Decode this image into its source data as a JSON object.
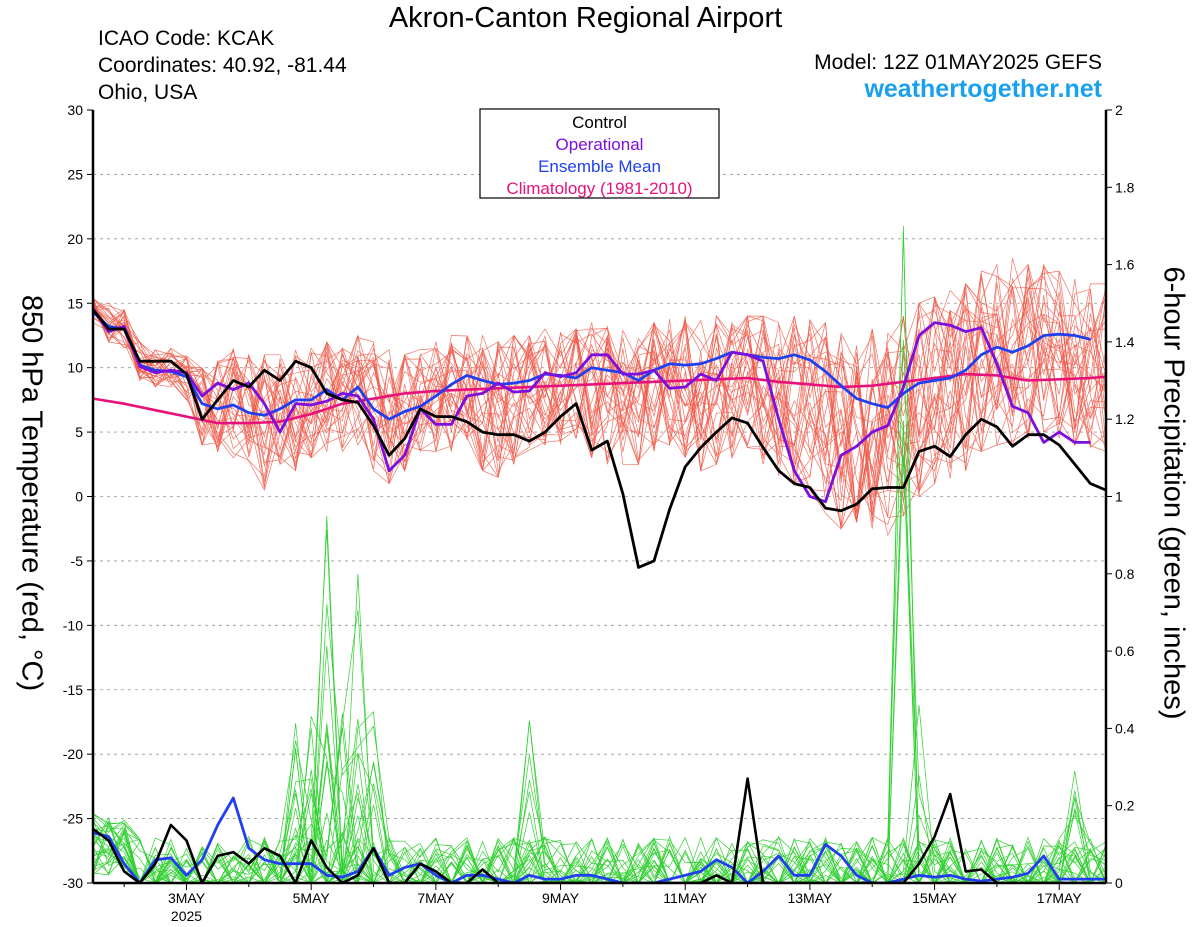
{
  "header": {
    "title": "Akron-Canton Regional Airport",
    "icao": "ICAO Code: KCAK",
    "coordinates": "Coordinates: 40.92, -81.44",
    "location": "Ohio, USA",
    "model": "Model: 12Z 01MAY2025 GEFS",
    "site": "weathertogether.net"
  },
  "colors": {
    "control": "#000000",
    "operational": "#7d0fdc",
    "ensemble_mean": "#2040f0",
    "climatology": "#e8107a",
    "members_temp": "#f05a4a",
    "members_precip": "#30d030",
    "site": "#1aa0ef",
    "grid": "#999999"
  },
  "chart_data": {
    "type": "line",
    "x_axis": {
      "unit": "days since 12Z 01MAY2025",
      "range": [
        0.0,
        16.25
      ],
      "ticks": [
        {
          "x": 1.5,
          "label": "3MAY",
          "sublabel": "2025"
        },
        {
          "x": 3.5,
          "label": "5MAY"
        },
        {
          "x": 5.5,
          "label": "7MAY"
        },
        {
          "x": 7.5,
          "label": "9MAY"
        },
        {
          "x": 9.5,
          "label": "11MAY"
        },
        {
          "x": 11.5,
          "label": "13MAY"
        },
        {
          "x": 13.5,
          "label": "15MAY"
        },
        {
          "x": 15.5,
          "label": "17MAY"
        }
      ]
    },
    "left_axis": {
      "label": "850 hPa Temperature (red, °C)",
      "range": [
        -30,
        30
      ],
      "ticks": [
        30,
        25,
        20,
        15,
        10,
        5,
        0,
        -5,
        -10,
        -15,
        -20,
        -25,
        -30
      ]
    },
    "right_axis": {
      "label": "6-hour Precipitation (green, inches)",
      "range": [
        0,
        2
      ],
      "ticks": [
        2,
        1.8,
        1.6,
        1.4,
        1.2,
        1,
        0.8,
        0.6,
        0.4,
        0.2,
        0
      ]
    },
    "grid": "dashed horizontal",
    "legend": {
      "position": "top-center",
      "entries": [
        {
          "label": "Control",
          "color": "#000000"
        },
        {
          "label": "Operational",
          "color": "#7d0fdc"
        },
        {
          "label": "Ensemble Mean",
          "color": "#2040f0"
        },
        {
          "label": "Climatology (1981-2010)",
          "color": "#e8107a"
        }
      ]
    },
    "series": [
      {
        "name": "Control",
        "axis": "left",
        "x": [
          0,
          0.25,
          0.5,
          0.75,
          1,
          1.25,
          1.5,
          1.75,
          2,
          2.25,
          2.5,
          2.75,
          3,
          3.25,
          3.5,
          3.75,
          4,
          4.25,
          4.5,
          4.75,
          5,
          5.25,
          5.5,
          5.75,
          6,
          6.25,
          6.5,
          6.75,
          7,
          7.25,
          7.5,
          7.75,
          8,
          8.25,
          8.5,
          8.75,
          9,
          9.25,
          9.5,
          9.75,
          10,
          10.25,
          10.5,
          10.75,
          11,
          11.25,
          11.5,
          11.75,
          12,
          12.25,
          12.5,
          12.75,
          13,
          13.25,
          13.5,
          13.75,
          14,
          14.25,
          14.5,
          14.75,
          15,
          15.25,
          15.5,
          15.75,
          16,
          16.25
        ],
        "y": [
          14.5,
          13.0,
          13.0,
          10.5,
          10.5,
          10.5,
          9.5,
          6.0,
          7.5,
          9.0,
          8.5,
          9.8,
          9.0,
          10.5,
          10.0,
          8.0,
          7.5,
          7.3,
          5.5,
          3.2,
          4.5,
          6.8,
          6.2,
          6.2,
          5.8,
          5.0,
          4.8,
          4.8,
          4.3,
          5.0,
          6.2,
          7.2,
          3.6,
          4.3,
          0.2,
          -5.5,
          -5.0,
          -1.0,
          2.3,
          3.8,
          5.0,
          6.1,
          5.7,
          3.8,
          2.0,
          1.0,
          0.7,
          -0.9,
          -1.1,
          -0.6,
          0.6,
          0.7,
          0.7,
          3.5,
          3.9,
          3.1,
          4.8,
          6.0,
          5.4,
          3.9,
          4.8,
          4.8,
          4.0,
          2.5,
          1.0,
          0.5
        ]
      },
      {
        "name": "Operational",
        "axis": "left",
        "x": [
          0,
          0.25,
          0.5,
          0.75,
          1,
          1.25,
          1.5,
          1.75,
          2,
          2.25,
          2.5,
          2.75,
          3,
          3.25,
          3.5,
          3.75,
          4,
          4.25,
          4.5,
          4.75,
          5,
          5.25,
          5.5,
          5.75,
          6,
          6.25,
          6.5,
          6.75,
          7,
          7.25,
          7.5,
          7.75,
          8,
          8.25,
          8.5,
          8.75,
          9,
          9.25,
          9.5,
          9.75,
          10,
          10.25,
          10.5,
          10.75,
          11,
          11.25,
          11.5,
          11.75,
          12,
          12.25,
          12.5,
          12.75,
          13,
          13.25,
          13.5,
          13.75,
          14,
          14.25,
          14.5,
          14.75,
          15,
          15.25,
          15.5,
          15.75,
          16
        ],
        "y": [
          14.6,
          12.8,
          13.2,
          10.1,
          9.6,
          9.8,
          9.6,
          7.8,
          8.8,
          8.3,
          8.8,
          7.2,
          5.0,
          7.2,
          7.1,
          7.4,
          8.0,
          7.8,
          6.0,
          2.0,
          3.2,
          6.8,
          5.6,
          5.6,
          7.8,
          8.0,
          8.8,
          8.1,
          8.2,
          9.6,
          9.3,
          9.6,
          11.0,
          11.0,
          9.5,
          9.5,
          9.8,
          8.4,
          8.5,
          9.5,
          9.0,
          11.2,
          11.0,
          10.5,
          6.0,
          2.0,
          0.0,
          -0.4,
          3.2,
          3.9,
          5.0,
          5.5,
          8.5,
          12.5,
          13.5,
          13.3,
          12.8,
          13.1,
          10.3,
          7.0,
          6.5,
          4.2,
          5.0,
          4.2,
          4.2
        ]
      },
      {
        "name": "Ensemble Mean",
        "axis": "left",
        "x": [
          0,
          0.25,
          0.5,
          0.75,
          1,
          1.25,
          1.5,
          1.75,
          2,
          2.25,
          2.5,
          2.75,
          3,
          3.25,
          3.5,
          3.75,
          4,
          4.25,
          4.5,
          4.75,
          5,
          5.25,
          5.5,
          5.75,
          6,
          6.25,
          6.5,
          6.75,
          7,
          7.25,
          7.5,
          7.75,
          8,
          8.25,
          8.5,
          8.75,
          9,
          9.25,
          9.5,
          9.75,
          10,
          10.25,
          10.5,
          10.75,
          11,
          11.25,
          11.5,
          11.75,
          12,
          12.25,
          12.5,
          12.75,
          13,
          13.25,
          13.5,
          13.75,
          14,
          14.25,
          14.5,
          14.75,
          15,
          15.25,
          15.5,
          15.75,
          16
        ],
        "y": [
          14.3,
          13.2,
          13.0,
          10.2,
          9.8,
          9.7,
          9.3,
          7.2,
          6.8,
          7.1,
          6.5,
          6.3,
          6.8,
          7.5,
          7.5,
          8.3,
          7.5,
          8.5,
          6.8,
          6.0,
          6.6,
          7.0,
          7.8,
          8.7,
          9.4,
          9.0,
          8.7,
          8.8,
          9.0,
          9.5,
          9.4,
          9.2,
          10.0,
          9.8,
          9.6,
          9.0,
          9.8,
          10.3,
          10.2,
          10.3,
          10.7,
          11.2,
          11.0,
          10.8,
          10.7,
          11.0,
          10.6,
          9.7,
          8.6,
          7.6,
          7.2,
          6.9,
          8.0,
          8.8,
          9.0,
          9.2,
          9.8,
          11.0,
          11.6,
          11.2,
          11.7,
          12.5,
          12.6,
          12.5,
          12.2
        ]
      },
      {
        "name": "Climatology (1981-2010)",
        "axis": "left",
        "x": [
          0,
          0.5,
          1,
          1.5,
          2,
          2.5,
          3,
          3.5,
          4,
          4.5,
          5,
          5.5,
          6,
          6.5,
          7,
          7.5,
          8,
          8.5,
          9,
          9.5,
          10,
          10.5,
          11,
          11.5,
          12,
          12.5,
          13,
          13.5,
          14,
          14.5,
          15,
          15.5,
          16,
          16.25
        ],
        "y": [
          7.6,
          7.2,
          6.7,
          6.2,
          5.7,
          5.7,
          5.8,
          6.4,
          7.2,
          7.6,
          8.0,
          8.2,
          8.3,
          8.4,
          8.5,
          8.6,
          8.7,
          8.8,
          8.9,
          9.0,
          9.1,
          9.2,
          8.9,
          8.7,
          8.5,
          8.6,
          8.9,
          9.2,
          9.5,
          9.4,
          9.0,
          9.1,
          9.2,
          9.3
        ]
      },
      {
        "name": "Control precipitation",
        "axis": "right",
        "x": [
          0,
          0.25,
          0.5,
          0.75,
          1,
          1.25,
          1.5,
          1.75,
          2,
          2.25,
          2.5,
          2.75,
          3,
          3.25,
          3.5,
          3.75,
          4,
          4.25,
          4.5,
          4.75,
          5,
          5.25,
          5.5,
          5.75,
          6,
          6.25,
          6.5,
          6.75,
          7,
          7.25,
          7.5,
          7.75,
          8,
          8.25,
          8.5,
          8.75,
          9,
          9.25,
          9.5,
          9.75,
          10,
          10.25,
          10.5,
          10.75,
          11,
          11.25,
          11.5,
          11.75,
          12,
          12.25,
          12.5,
          12.75,
          13,
          13.25,
          13.5,
          13.75,
          14,
          14.25,
          14.5,
          14.75,
          15,
          15.25,
          15.5,
          15.75,
          16
        ],
        "y": [
          0.14,
          0.11,
          0.03,
          0,
          0.05,
          0.15,
          0.11,
          0,
          0.07,
          0.08,
          0.05,
          0.09,
          0.07,
          0,
          0.11,
          0.04,
          0,
          0.02,
          0.09,
          0,
          0,
          0.05,
          0.03,
          0,
          0,
          0.035,
          0,
          0,
          0,
          0,
          0,
          0,
          0,
          0,
          0,
          0,
          0,
          0,
          0,
          0,
          0.02,
          0,
          0.27,
          0,
          0,
          0,
          0,
          0,
          0,
          0,
          0,
          0,
          0,
          0.05,
          0.12,
          0.23,
          0.03,
          0.035,
          0,
          0,
          0,
          0,
          0,
          0,
          0
        ]
      },
      {
        "name": "Ensemble Mean precipitation",
        "axis": "right",
        "x": [
          0,
          0.25,
          0.5,
          0.75,
          1,
          1.25,
          1.5,
          1.75,
          2,
          2.25,
          2.5,
          2.75,
          3,
          3.25,
          3.5,
          3.75,
          4,
          4.25,
          4.5,
          4.75,
          5,
          5.25,
          5.5,
          5.75,
          6,
          6.25,
          6.5,
          6.75,
          7,
          7.25,
          7.5,
          7.75,
          8,
          8.25,
          8.5,
          8.75,
          9,
          9.25,
          9.5,
          9.75,
          10,
          10.25,
          10.5,
          10.75,
          11,
          11.25,
          11.5,
          11.75,
          12,
          12.25,
          12.5,
          12.75,
          13,
          13.25,
          13.5,
          13.75,
          14,
          14.25,
          14.5,
          14.75,
          15,
          15.25,
          15.5,
          15.75,
          16,
          16.25
        ],
        "y": [
          0.13,
          0.12,
          0.05,
          0,
          0.06,
          0.065,
          0.02,
          0.06,
          0.15,
          0.22,
          0.09,
          0.06,
          0.05,
          0.05,
          0.05,
          0.02,
          0.015,
          0.03,
          0.09,
          0.02,
          0.04,
          0.05,
          0.02,
          0,
          0.02,
          0.02,
          0.01,
          0,
          0.02,
          0.01,
          0.01,
          0.02,
          0.02,
          0.01,
          0,
          0,
          0,
          0.01,
          0.02,
          0.03,
          0.06,
          0.04,
          0,
          0.03,
          0.07,
          0.02,
          0.02,
          0.1,
          0.07,
          0.02,
          0,
          0,
          0.01,
          0.02,
          0.015,
          0.02,
          0.01,
          0.005,
          0.01,
          0.015,
          0.025,
          0.07,
          0.01,
          0.01,
          0.01,
          0.01
        ]
      },
      {
        "name": "Ensemble members 850 hPa temperature",
        "axis": "left",
        "x": [
          0,
          0.25,
          0.5,
          0.75,
          1,
          1.25,
          1.5,
          1.75,
          2,
          2.25,
          2.5,
          2.75,
          3,
          3.25,
          3.5,
          3.75,
          4,
          4.25,
          4.5,
          4.75,
          5,
          5.25,
          5.5,
          5.75,
          6,
          6.25,
          6.5,
          6.75,
          7,
          7.25,
          7.5,
          7.75,
          8,
          8.25,
          8.5,
          8.75,
          9,
          9.25,
          9.5,
          9.75,
          10,
          10.25,
          10.5,
          10.75,
          11,
          11.25,
          11.5,
          11.75,
          12,
          12.25,
          12.5,
          12.75,
          13,
          13.25,
          13.5,
          13.75,
          14,
          14.25,
          14.5,
          14.75,
          15,
          15.25,
          15.5,
          15.75,
          16,
          16.25
        ],
        "y_min": [
          13.5,
          12.0,
          11.5,
          9.0,
          8.5,
          8.5,
          7.5,
          4.0,
          3.5,
          3.0,
          2.5,
          0.5,
          2.5,
          2.0,
          3.0,
          3.5,
          3.5,
          4.0,
          2.0,
          1.0,
          2.0,
          3.5,
          3.5,
          3.5,
          4.0,
          2.0,
          1.5,
          2.5,
          3.5,
          4.0,
          4.0,
          4.5,
          3.0,
          2.5,
          2.5,
          2.5,
          3.5,
          4.0,
          3.0,
          2.0,
          2.5,
          3.0,
          3.5,
          2.5,
          1.5,
          1.0,
          0.5,
          -1.5,
          -2.5,
          -2.0,
          -2.5,
          -3.0,
          -1.5,
          0.0,
          1.0,
          1.0,
          2.0,
          3.5,
          4.0,
          4.0,
          4.5,
          5.0,
          4.5,
          4.0,
          3.5,
          3.5
        ],
        "y_max": [
          15.5,
          15.0,
          14.5,
          12.0,
          11.5,
          11.5,
          11.0,
          10.0,
          10.5,
          11.5,
          11.0,
          11.0,
          11.0,
          11.5,
          11.5,
          12.0,
          11.5,
          12.5,
          12.0,
          11.5,
          11.0,
          11.5,
          12.0,
          12.5,
          12.5,
          12.5,
          12.0,
          12.5,
          12.5,
          13.0,
          13.0,
          13.0,
          13.5,
          13.5,
          13.0,
          13.0,
          13.5,
          14.0,
          14.0,
          14.0,
          14.0,
          14.0,
          14.0,
          14.0,
          13.5,
          14.0,
          14.0,
          13.5,
          13.0,
          13.0,
          13.0,
          13.5,
          14.0,
          15.0,
          15.5,
          16.0,
          16.5,
          17.5,
          18.0,
          18.5,
          18.0,
          18.0,
          17.5,
          17.0,
          16.5,
          16.5
        ]
      },
      {
        "name": "Ensemble members 6-hour precipitation",
        "axis": "right",
        "peaks": [
          {
            "x": 3.75,
            "y": 0.95
          },
          {
            "x": 4.25,
            "y": 0.8
          },
          {
            "x": 7.0,
            "y": 0.42
          },
          {
            "x": 13.0,
            "y": 1.7
          },
          {
            "x": 13.25,
            "y": 0.46
          },
          {
            "x": 15.75,
            "y": 0.29
          }
        ]
      }
    ]
  }
}
